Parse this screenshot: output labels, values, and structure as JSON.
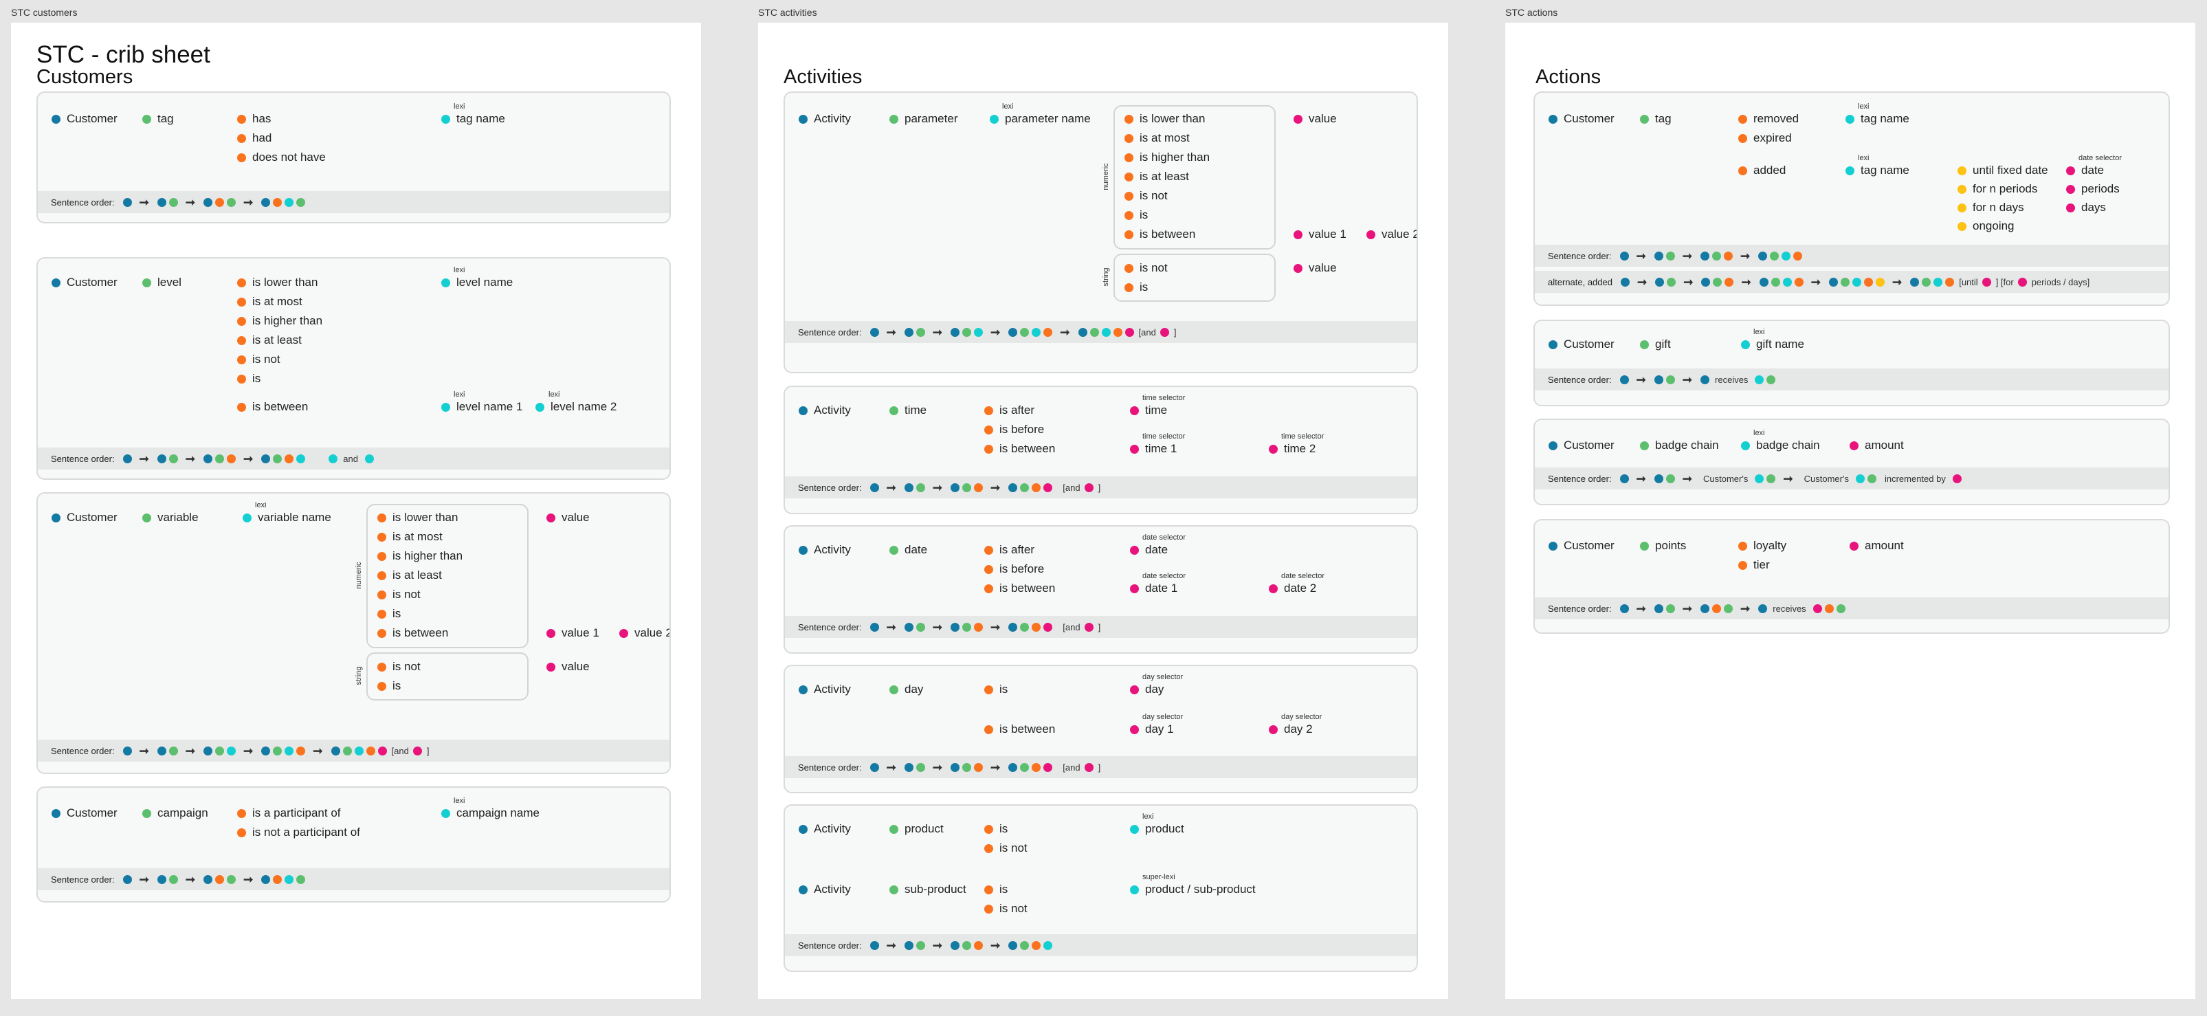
{
  "frames": {
    "customers": "STC customers",
    "activities": "STC activities",
    "actions": "STC actions"
  },
  "doc_title": "STC - crib sheet",
  "sections": {
    "customers": "Customers",
    "activities": "Activities",
    "actions": "Actions"
  },
  "common": {
    "sentence_order": "Sentence order:",
    "alternate_added": "alternate, added",
    "lexi": "lexi",
    "super_lexi": "super-lexi",
    "numeric": "numeric",
    "string": "string",
    "time_selector": "time selector",
    "date_selector": "date selector",
    "day_selector": "day selector",
    "and": "and",
    "and_open": "[and",
    "close": "]",
    "until_open": "[until",
    "for_open": "] [for",
    "periods_days_close": "periods / days]",
    "receives": "receives",
    "customers_possessive": "Customer's",
    "incremented_by": "incremented by"
  },
  "colors": {
    "blue": "#137aa3",
    "green": "#5cbf6e",
    "orange": "#fa721d",
    "teal": "#14cfd2",
    "pink": "#e8137b",
    "yellow": "#fcc214"
  },
  "terms": {
    "customer": "Customer",
    "activity": "Activity",
    "tag": "tag",
    "level": "level",
    "variable": "variable",
    "campaign": "campaign",
    "has": "has",
    "had": "had",
    "does_not_have": "does not have",
    "tag_name": "tag name",
    "is_lower_than": "is lower than",
    "is_at_most": "is at most",
    "is_higher_than": "is higher than",
    "is_at_least": "is at least",
    "is_not": "is not",
    "is": "is",
    "is_between": "is between",
    "level_name": "level name",
    "level_name_1": "level name 1",
    "level_name_2": "level name 2",
    "variable_name": "variable name",
    "value": "value",
    "value_1": "value 1",
    "value_2": "value 2",
    "is_participant": "is a participant of",
    "is_not_participant": "is not a participant of",
    "campaign_name": "campaign name",
    "parameter": "parameter",
    "parameter_name": "parameter name",
    "time": "time",
    "is_after": "is after",
    "is_before": "is before",
    "time_1": "time 1",
    "time_2": "time 2",
    "date": "date",
    "date_1": "date 1",
    "date_2": "date 2",
    "day": "day",
    "day_1": "day 1",
    "day_2": "day 2",
    "product": "product",
    "sub_product": "sub-product",
    "product_sub_product": "product / sub-product",
    "removed": "removed",
    "expired": "expired",
    "added": "added",
    "until_fixed_date": "until fixed date",
    "for_n_periods": "for n periods",
    "for_n_days": "for n days",
    "ongoing": "ongoing",
    "periods": "periods",
    "days": "days",
    "gift": "gift",
    "gift_name": "gift name",
    "badge_chain": "badge chain",
    "amount": "amount",
    "points": "points",
    "loyalty": "loyalty",
    "tier": "tier"
  }
}
